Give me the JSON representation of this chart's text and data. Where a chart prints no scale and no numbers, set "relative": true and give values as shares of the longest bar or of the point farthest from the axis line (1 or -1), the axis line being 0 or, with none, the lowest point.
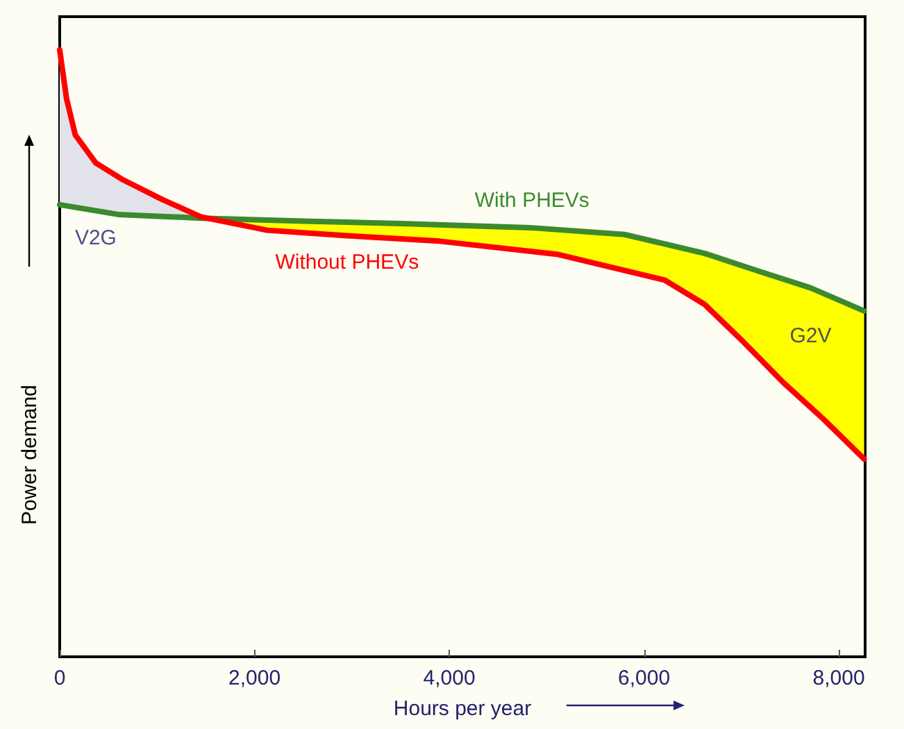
{
  "chart_data": {
    "type": "line",
    "relative": true,
    "xlabel": "Hours per year",
    "ylabel": "Power demand",
    "xlim": [
      0,
      8270
    ],
    "xticks": [
      0,
      {
        "value": 2000,
        "label": "2,000"
      },
      {
        "value": 4000,
        "label": "4,000"
      },
      {
        "value": 6000,
        "label": "6,000"
      },
      {
        "value": 8000,
        "label": "8,000"
      }
    ],
    "series": [
      {
        "name": "With PHEVs",
        "color": "#3c8a2e",
        "x": [
          0,
          600,
          1450,
          2500,
          3500,
          4850,
          5800,
          6620,
          7170,
          7710,
          8260
        ],
        "values": [
          0.745,
          0.729,
          0.723,
          0.718,
          0.714,
          0.707,
          0.696,
          0.665,
          0.636,
          0.608,
          0.57
        ]
      },
      {
        "name": "Without PHEVs",
        "color": "#ff0000",
        "x": [
          0,
          70,
          160,
          370,
          640,
          1050,
          1450,
          2130,
          2950,
          3900,
          5120,
          6210,
          6620,
          7020,
          7430,
          7840,
          8260
        ],
        "values": [
          1.0,
          0.92,
          0.86,
          0.814,
          0.787,
          0.754,
          0.725,
          0.703,
          0.694,
          0.685,
          0.663,
          0.621,
          0.581,
          0.519,
          0.452,
          0.392,
          0.326
        ]
      }
    ],
    "annotations": [
      "V2G",
      "G2V"
    ],
    "grid": false,
    "legend": false,
    "marker": "none",
    "line_style": "solid"
  }
}
